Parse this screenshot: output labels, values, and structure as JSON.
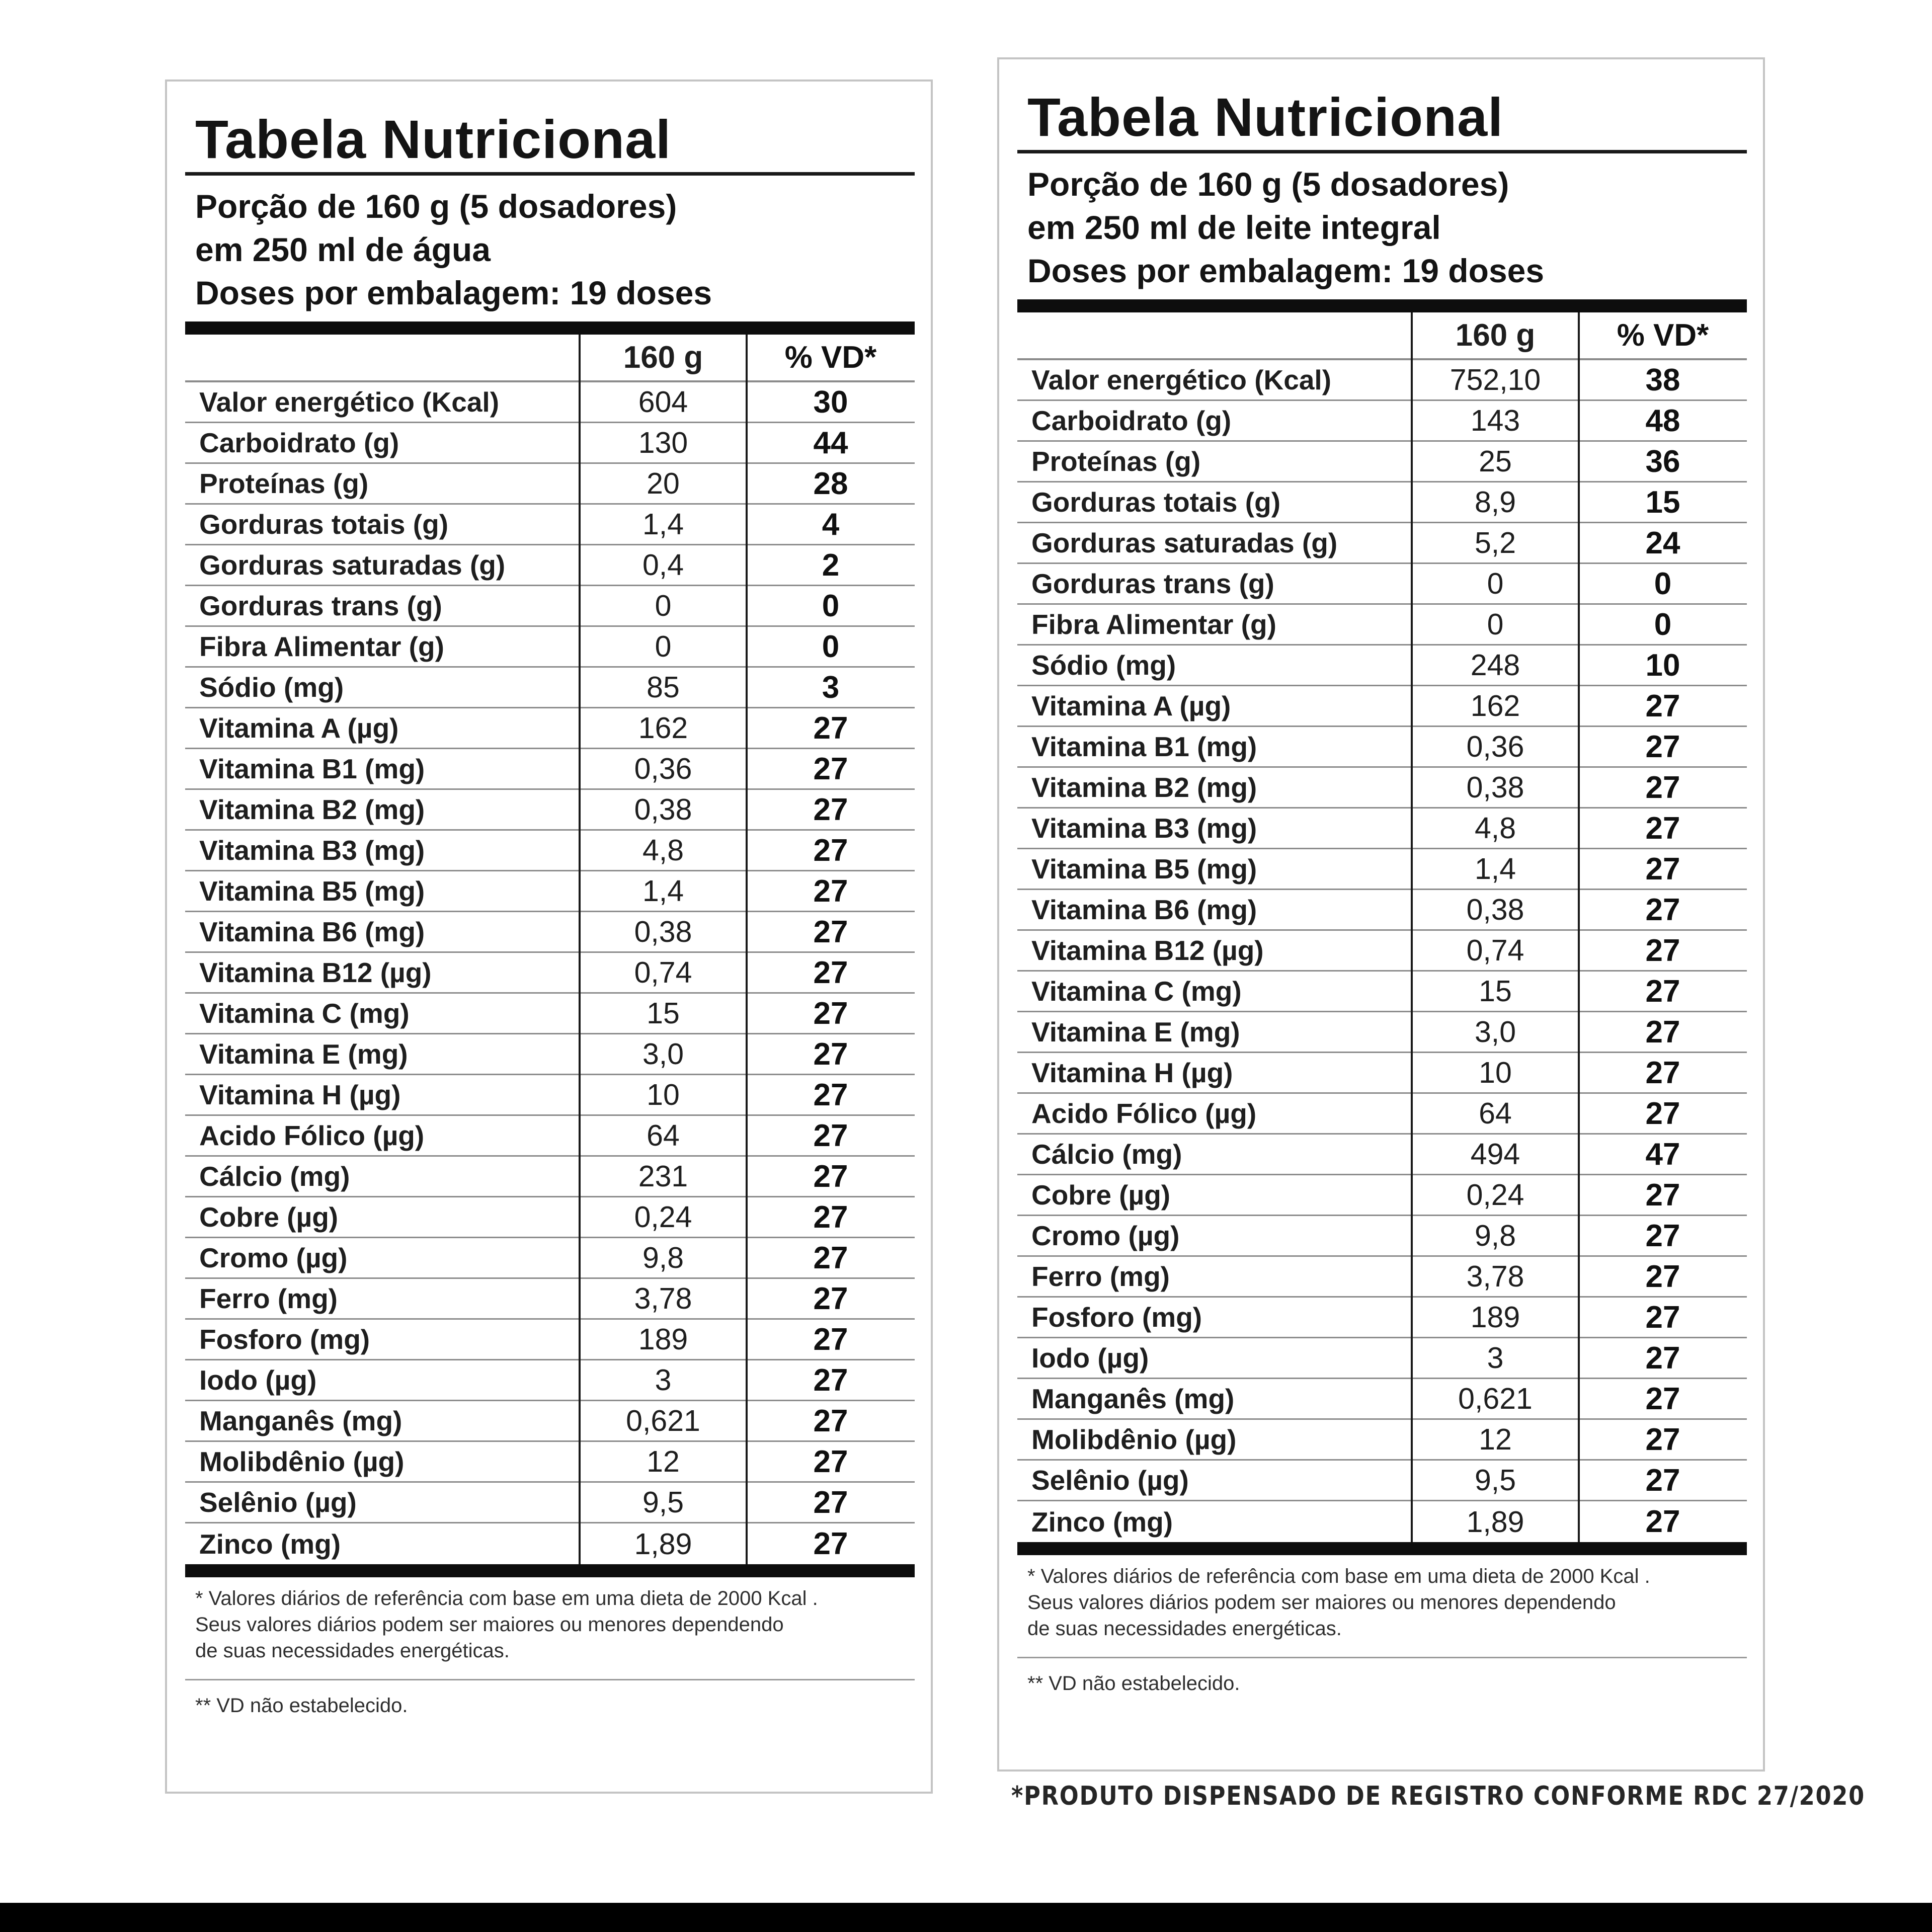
{
  "left_panel": {
    "title": "Tabela Nutricional",
    "serving": [
      "Porção de 160 g (5 dosadores)",
      "em 250 ml de água",
      "Doses por embalagem: 19 doses"
    ],
    "header": {
      "name": "",
      "amount": "160 g",
      "vd": "% VD*"
    },
    "rows": [
      {
        "name": "Valor energético (Kcal)",
        "amount": "604",
        "vd": "30"
      },
      {
        "name": "Carboidrato (g)",
        "amount": "130",
        "vd": "44"
      },
      {
        "name": "Proteínas (g)",
        "amount": "20",
        "vd": "28"
      },
      {
        "name": "Gorduras totais (g)",
        "amount": "1,4",
        "vd": "4"
      },
      {
        "name": "Gorduras saturadas (g)",
        "amount": "0,4",
        "vd": "2"
      },
      {
        "name": "Gorduras trans (g)",
        "amount": "0",
        "vd": "0"
      },
      {
        "name": "Fibra Alimentar (g)",
        "amount": "0",
        "vd": "0"
      },
      {
        "name": "Sódio (mg)",
        "amount": "85",
        "vd": "3"
      },
      {
        "name": "Vitamina A (µg)",
        "amount": "162",
        "vd": "27"
      },
      {
        "name": "Vitamina B1 (mg)",
        "amount": "0,36",
        "vd": "27"
      },
      {
        "name": "Vitamina B2 (mg)",
        "amount": "0,38",
        "vd": "27"
      },
      {
        "name": "Vitamina B3 (mg)",
        "amount": "4,8",
        "vd": "27"
      },
      {
        "name": "Vitamina B5 (mg)",
        "amount": "1,4",
        "vd": "27"
      },
      {
        "name": "Vitamina B6 (mg)",
        "amount": "0,38",
        "vd": "27"
      },
      {
        "name": "Vitamina B12 (µg)",
        "amount": "0,74",
        "vd": "27"
      },
      {
        "name": "Vitamina C (mg)",
        "amount": "15",
        "vd": "27"
      },
      {
        "name": "Vitamina E (mg)",
        "amount": "3,0",
        "vd": "27"
      },
      {
        "name": "Vitamina H (µg)",
        "amount": "10",
        "vd": "27"
      },
      {
        "name": "Acido Fólico (µg)",
        "amount": "64",
        "vd": "27"
      },
      {
        "name": "Cálcio (mg)",
        "amount": "231",
        "vd": "27"
      },
      {
        "name": "Cobre (µg)",
        "amount": "0,24",
        "vd": "27"
      },
      {
        "name": "Cromo (µg)",
        "amount": "9,8",
        "vd": "27"
      },
      {
        "name": "Ferro (mg)",
        "amount": "3,78",
        "vd": "27"
      },
      {
        "name": "Fosforo (mg)",
        "amount": "189",
        "vd": "27"
      },
      {
        "name": "Iodo (µg)",
        "amount": "3",
        "vd": "27"
      },
      {
        "name": "Manganês (mg)",
        "amount": "0,621",
        "vd": "27"
      },
      {
        "name": "Molibdênio (µg)",
        "amount": "12",
        "vd": "27"
      },
      {
        "name": "Selênio (µg)",
        "amount": "9,5",
        "vd": "27"
      },
      {
        "name": "Zinco (mg)",
        "amount": "1,89",
        "vd": "27"
      }
    ],
    "footnote": [
      "* Valores diários de referência com base em uma dieta de 2000 Kcal .",
      "Seus valores diários podem ser maiores ou menores dependendo",
      "de suas necessidades energéticas."
    ],
    "note2": "** VD não estabelecido."
  },
  "right_panel": {
    "title": "Tabela Nutricional",
    "serving": [
      "Porção de 160 g (5 dosadores)",
      "em 250 ml de leite integral",
      "Doses por embalagem: 19 doses"
    ],
    "header": {
      "name": "",
      "amount": "160 g",
      "vd": "% VD*"
    },
    "rows": [
      {
        "name": "Valor energético (Kcal)",
        "amount": "752,10",
        "vd": "38"
      },
      {
        "name": "Carboidrato (g)",
        "amount": "143",
        "vd": "48"
      },
      {
        "name": "Proteínas (g)",
        "amount": "25",
        "vd": "36"
      },
      {
        "name": "Gorduras totais (g)",
        "amount": "8,9",
        "vd": "15"
      },
      {
        "name": "Gorduras saturadas (g)",
        "amount": "5,2",
        "vd": "24"
      },
      {
        "name": "Gorduras trans (g)",
        "amount": "0",
        "vd": "0"
      },
      {
        "name": "Fibra Alimentar (g)",
        "amount": "0",
        "vd": "0"
      },
      {
        "name": "Sódio (mg)",
        "amount": "248",
        "vd": "10"
      },
      {
        "name": "Vitamina A (µg)",
        "amount": "162",
        "vd": "27"
      },
      {
        "name": "Vitamina B1 (mg)",
        "amount": "0,36",
        "vd": "27"
      },
      {
        "name": "Vitamina B2 (mg)",
        "amount": "0,38",
        "vd": "27"
      },
      {
        "name": "Vitamina B3 (mg)",
        "amount": "4,8",
        "vd": "27"
      },
      {
        "name": "Vitamina B5 (mg)",
        "amount": "1,4",
        "vd": "27"
      },
      {
        "name": "Vitamina B6 (mg)",
        "amount": "0,38",
        "vd": "27"
      },
      {
        "name": "Vitamina B12 (µg)",
        "amount": "0,74",
        "vd": "27"
      },
      {
        "name": "Vitamina C (mg)",
        "amount": "15",
        "vd": "27"
      },
      {
        "name": "Vitamina E (mg)",
        "amount": "3,0",
        "vd": "27"
      },
      {
        "name": "Vitamina H (µg)",
        "amount": "10",
        "vd": "27"
      },
      {
        "name": "Acido Fólico (µg)",
        "amount": "64",
        "vd": "27"
      },
      {
        "name": "Cálcio (mg)",
        "amount": "494",
        "vd": "47"
      },
      {
        "name": "Cobre (µg)",
        "amount": "0,24",
        "vd": "27"
      },
      {
        "name": "Cromo (µg)",
        "amount": "9,8",
        "vd": "27"
      },
      {
        "name": "Ferro (mg)",
        "amount": "3,78",
        "vd": "27"
      },
      {
        "name": "Fosforo (mg)",
        "amount": "189",
        "vd": "27"
      },
      {
        "name": "Iodo (µg)",
        "amount": "3",
        "vd": "27"
      },
      {
        "name": "Manganês (mg)",
        "amount": "0,621",
        "vd": "27"
      },
      {
        "name": "Molibdênio (µg)",
        "amount": "12",
        "vd": "27"
      },
      {
        "name": "Selênio (µg)",
        "amount": "9,5",
        "vd": "27"
      },
      {
        "name": "Zinco (mg)",
        "amount": "1,89",
        "vd": "27"
      }
    ],
    "footnote": [
      "* Valores diários de referência com base em uma dieta de 2000 Kcal .",
      "Seus valores diários podem ser maiores ou menores dependendo",
      "de suas necessidades energéticas."
    ],
    "note2": "** VD não estabelecido."
  },
  "disclaimer": "*PRODUTO DISPENSADO DE REGISTRO CONFORME RDC 27/2020"
}
